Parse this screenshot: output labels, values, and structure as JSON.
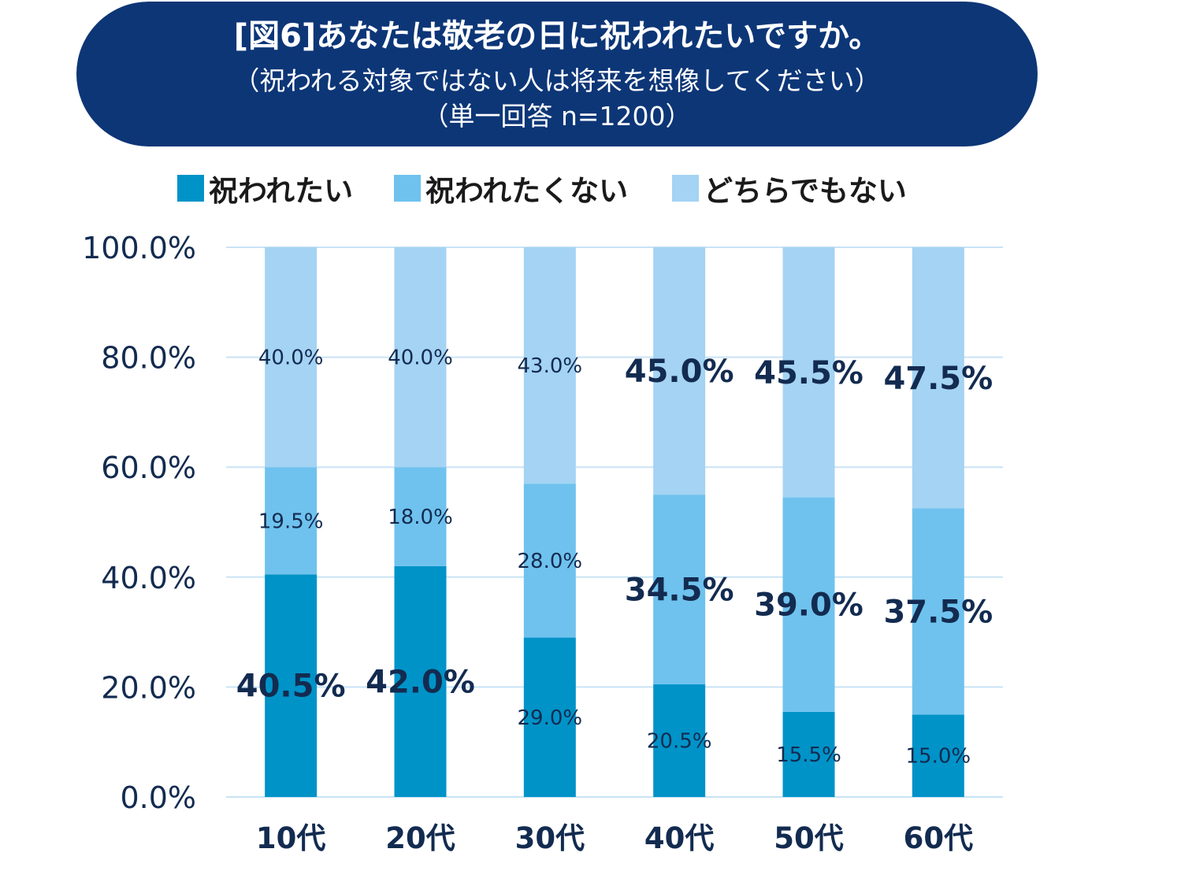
{
  "title": {
    "line1": "[図6]あなたは敬老の日に祝われたいですか。",
    "line2": "（祝われる対象ではない人は将来を想像してください）",
    "line3": "（単一回答 n=1200）"
  },
  "colors": {
    "banner": "#0d3677",
    "series1": "#0093c8",
    "series2": "#6fc2ee",
    "series3": "#a4d3f3",
    "gridline": "#c9e3f6",
    "text": "#132b50"
  },
  "chart_data": {
    "type": "bar",
    "stacked": true,
    "categories": [
      "10代",
      "20代",
      "30代",
      "40代",
      "50代",
      "60代"
    ],
    "series": [
      {
        "name": "祝われたい",
        "values": [
          40.5,
          42.0,
          29.0,
          20.5,
          15.5,
          15.0
        ],
        "labels": [
          "40.5%",
          "42.0%",
          "29.0%",
          "20.5%",
          "15.5%",
          "15.0%"
        ],
        "color": "#0093c8"
      },
      {
        "name": "祝われたくない",
        "values": [
          19.5,
          18.0,
          28.0,
          34.5,
          39.0,
          37.5
        ],
        "labels": [
          "19.5%",
          "18.0%",
          "28.0%",
          "34.5%",
          "39.0%",
          "37.5%"
        ],
        "color": "#6fc2ee"
      },
      {
        "name": "どちらでもない",
        "values": [
          40.0,
          40.0,
          43.0,
          45.0,
          45.5,
          47.5
        ],
        "labels": [
          "40.0%",
          "40.0%",
          "43.0%",
          "45.0%",
          "45.5%",
          "47.5%"
        ],
        "color": "#a4d3f3"
      }
    ],
    "ylim": [
      0,
      100
    ],
    "yticks": [
      "0.0%",
      "20.0%",
      "40.0%",
      "60.0%",
      "80.0%",
      "100.0%"
    ],
    "grid": true,
    "legend_position": "top"
  }
}
